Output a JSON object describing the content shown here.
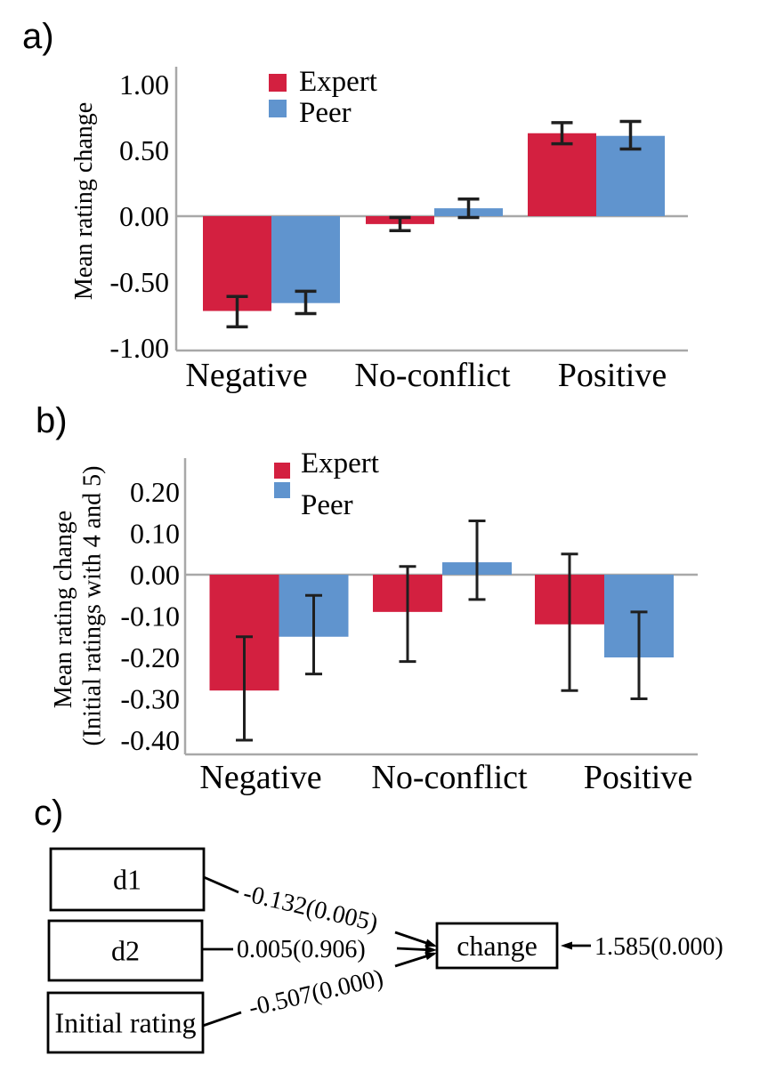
{
  "figure": {
    "background": "#ffffff",
    "panels": [
      {
        "id": "a",
        "label": "a)"
      },
      {
        "id": "b",
        "label": "b)"
      },
      {
        "id": "c",
        "label": "c)"
      }
    ]
  },
  "colors": {
    "expert": "#d32040",
    "peer": "#6094ce",
    "axis": "#a8a8a8",
    "error": "#1f1f1f",
    "text": "#000000"
  },
  "chart_data": [
    {
      "panel": "a",
      "type": "bar",
      "title": "",
      "ylabel": "Mean rating change",
      "categories": [
        "Negative",
        "No-conflict",
        "Positive"
      ],
      "yticks": {
        "values": [
          1.0,
          0.5,
          0.0,
          -0.5,
          -1.0
        ],
        "labels": [
          "1.00",
          "0.50",
          "0.00",
          "-0.50",
          "-1.00"
        ]
      },
      "ylim": [
        -1.0,
        1.0
      ],
      "legend_position": "top-left-inside",
      "series": [
        {
          "name": "Expert",
          "color_key": "expert",
          "values": [
            -0.72,
            -0.06,
            0.63
          ],
          "ci_upper": [
            -0.61,
            -0.01,
            0.71
          ],
          "ci_lower": [
            -0.84,
            -0.11,
            0.55
          ]
        },
        {
          "name": "Peer",
          "color_key": "peer",
          "values": [
            -0.66,
            0.06,
            0.61
          ],
          "ci_upper": [
            -0.57,
            0.13,
            0.72
          ],
          "ci_lower": [
            -0.74,
            -0.01,
            0.51
          ]
        }
      ]
    },
    {
      "panel": "b",
      "type": "bar",
      "title": "",
      "ylabel_lines": [
        "Mean rating change",
        "(Initial ratings with 4 and 5)"
      ],
      "categories": [
        "Negative",
        "No-conflict",
        "Positive"
      ],
      "yticks": {
        "values": [
          0.2,
          0.1,
          0.0,
          -0.1,
          -0.2,
          -0.3,
          -0.4
        ],
        "labels": [
          "0.20",
          "0.10",
          "0.00",
          "-0.10",
          "-0.20",
          "-0.30",
          "-0.40"
        ]
      },
      "ylim": [
        -0.4,
        0.28
      ],
      "legend_position": "top-left-inside",
      "series": [
        {
          "name": "Expert",
          "color_key": "expert",
          "values": [
            -0.28,
            -0.09,
            -0.12
          ],
          "ci_upper": [
            -0.15,
            0.02,
            0.05
          ],
          "ci_lower": [
            -0.4,
            -0.21,
            -0.28
          ]
        },
        {
          "name": "Peer",
          "color_key": "peer",
          "values": [
            -0.15,
            0.03,
            -0.2
          ],
          "ci_upper": [
            -0.05,
            0.13,
            -0.09
          ],
          "ci_lower": [
            -0.24,
            -0.06,
            -0.3
          ]
        }
      ]
    },
    {
      "panel": "c",
      "type": "path-diagram",
      "nodes": [
        {
          "id": "d1",
          "label": "d1"
        },
        {
          "id": "d2",
          "label": "d2"
        },
        {
          "id": "initial",
          "label": "Initial rating"
        },
        {
          "id": "change",
          "label": "change"
        }
      ],
      "edges": [
        {
          "from": "d1",
          "to": "change",
          "label": "-0.132(0.005)"
        },
        {
          "from": "d2",
          "to": "change",
          "label": "0.005(0.906)"
        },
        {
          "from": "initial",
          "to": "change",
          "label": "-0.507(0.000)"
        },
        {
          "from": "external",
          "to": "change",
          "label": "1.585(0.000)"
        }
      ]
    }
  ]
}
